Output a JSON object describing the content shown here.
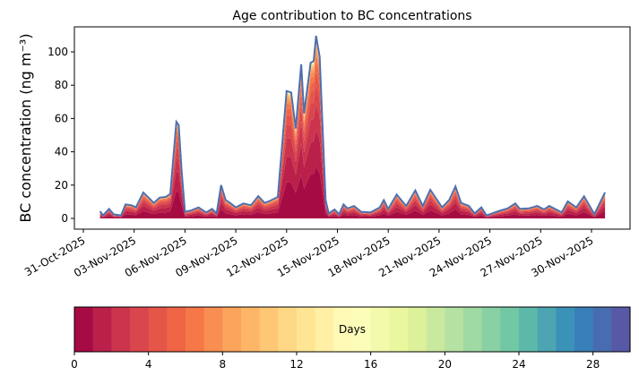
{
  "chart_data": {
    "type": "area",
    "title": "Age contribution to BC concentrations",
    "xlabel": "",
    "ylabel": "BC concentration (ng m⁻³)",
    "ylim": [
      -5,
      115
    ],
    "xlim_days_since_31_oct": [
      -0.6,
      32.2
    ],
    "yticks": [
      0,
      20,
      40,
      60,
      80,
      100
    ],
    "xticks": [
      {
        "day": 0,
        "label": "31-Oct-2025"
      },
      {
        "day": 3,
        "label": "03-Nov-2025"
      },
      {
        "day": 6,
        "label": "06-Nov-2025"
      },
      {
        "day": 9,
        "label": "09-Nov-2025"
      },
      {
        "day": 12,
        "label": "12-Nov-2025"
      },
      {
        "day": 15,
        "label": "15-Nov-2025"
      },
      {
        "day": 18,
        "label": "18-Nov-2025"
      },
      {
        "day": 21,
        "label": "21-Nov-2025"
      },
      {
        "day": 24,
        "label": "24-Nov-2025"
      },
      {
        "day": 27,
        "label": "27-Nov-2025"
      },
      {
        "day": 30,
        "label": "30-Nov-2025"
      }
    ],
    "total_series": {
      "name": "Total BC",
      "color": "#4e6fae",
      "x_days_since_31_oct": [
        0.99,
        1.16,
        1.52,
        1.78,
        2.22,
        2.49,
        2.84,
        3.1,
        3.54,
        3.9,
        4.16,
        4.5,
        4.87,
        5.13,
        5.49,
        5.63,
        5.8,
        6.0,
        6.37,
        6.8,
        7.25,
        7.6,
        7.87,
        8.13,
        8.4,
        8.66,
        9.0,
        9.45,
        9.9,
        10.33,
        10.7,
        10.95,
        11.48,
        12.0,
        12.27,
        12.54,
        12.86,
        13.03,
        13.42,
        13.6,
        13.74,
        13.95,
        14.3,
        14.48,
        14.83,
        15.1,
        15.36,
        15.6,
        15.98,
        16.4,
        16.95,
        17.5,
        17.74,
        18.0,
        18.5,
        19.06,
        19.6,
        20.04,
        20.48,
        21.18,
        21.6,
        21.97,
        22.3,
        22.76,
        23.1,
        23.5,
        23.8,
        24.5,
        25.05,
        25.5,
        25.77,
        26.3,
        26.8,
        27.2,
        27.5,
        28.24,
        28.6,
        29.1,
        29.56,
        30.17,
        30.8
      ],
      "values": [
        4.3,
        1.8,
        5.7,
        2.5,
        1.8,
        8.4,
        7.9,
        6.6,
        15.6,
        12,
        9.3,
        12.5,
        12.9,
        14.7,
        58,
        56,
        29,
        4,
        4.8,
        6.6,
        3.6,
        5.7,
        3,
        20,
        11,
        9.3,
        6.6,
        9,
        7.9,
        13.4,
        9.3,
        10.2,
        12.9,
        76.5,
        75.6,
        54,
        92.6,
        63,
        93.5,
        94.5,
        109.7,
        97,
        11,
        3,
        5.4,
        2.5,
        8.4,
        6,
        7.5,
        4,
        3.6,
        6.6,
        11,
        5.7,
        14.3,
        7.5,
        16.8,
        7.5,
        17.2,
        6.6,
        11,
        19.2,
        9.3,
        7.5,
        3,
        6.6,
        1.8,
        4.3,
        6,
        9,
        5.7,
        6,
        7.5,
        5.4,
        7.5,
        3.6,
        10.2,
        6.6,
        13.3,
        2.5,
        15.6
      ]
    },
    "age_layers": {
      "count": 30,
      "unit": "Days",
      "description_fraction_decay_days": 3
    },
    "colorbar": {
      "label": "Days",
      "range": [
        0,
        30
      ],
      "ticks": [
        "0",
        "4",
        "8",
        "12",
        "16",
        "20",
        "24",
        "28"
      ],
      "tick_values": [
        0,
        4,
        8,
        12,
        16,
        20,
        24,
        28
      ],
      "colormap_stops": [
        "#9e0142",
        "#d53e4f",
        "#f46d43",
        "#fdae61",
        "#fee08b",
        "#ffffbf",
        "#e6f598",
        "#abdda4",
        "#66c2a5",
        "#3288bd",
        "#5e4fa2"
      ]
    },
    "grid": false,
    "legend": "none"
  }
}
